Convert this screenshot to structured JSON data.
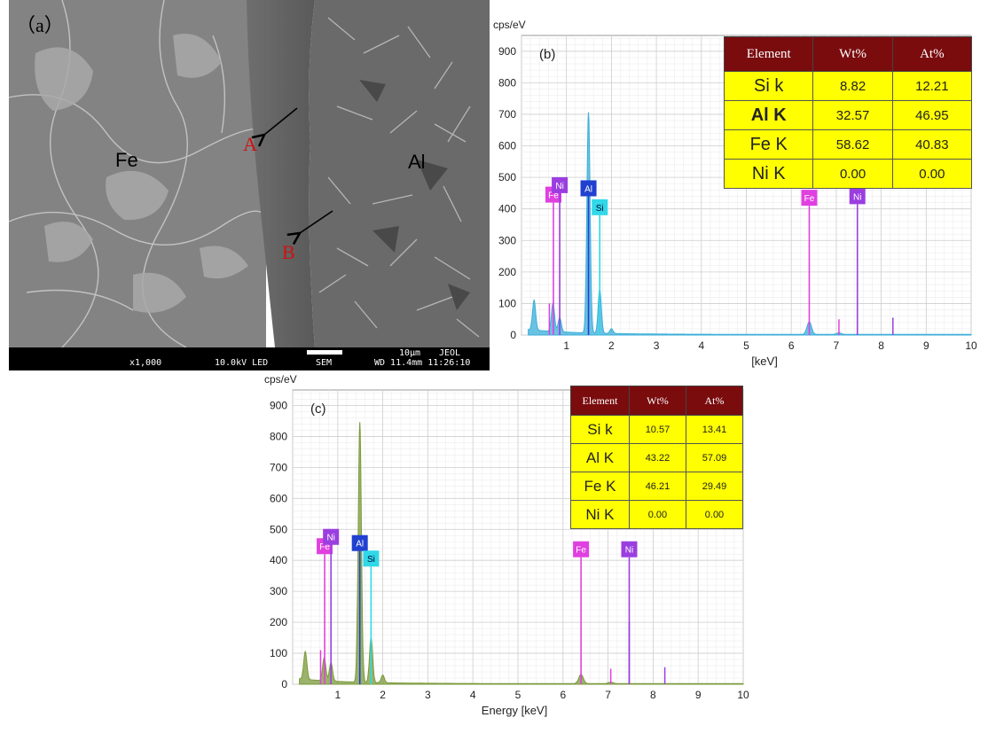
{
  "sem": {
    "panel_label": "（a）",
    "region_left": "Fe",
    "region_right": "Al",
    "marker_a": "A",
    "marker_b": "B",
    "info_bar": {
      "magnification": "x1,000",
      "voltage": "10.0kV LED",
      "mode": "SEM",
      "scale_text": "10μm",
      "brand": "JEOL",
      "working_distance_time": "WD 11.4mm 11:26:10"
    }
  },
  "spectrum_b": {
    "panel_label": "(b)",
    "yunit": "cps/eV",
    "xunit": "[keV]",
    "table": {
      "headers": [
        "Element",
        "Wt%",
        "At%"
      ],
      "rows": [
        {
          "element": "Si k",
          "wt": "8.82",
          "at": "12.21"
        },
        {
          "element": "Al K",
          "wt": "32.57",
          "at": "46.95"
        },
        {
          "element": "Fe K",
          "wt": "58.62",
          "at": "40.83"
        },
        {
          "element": "Ni K",
          "wt": "0.00",
          "at": "0.00"
        }
      ]
    }
  },
  "spectrum_c": {
    "panel_label": "(c)",
    "yunit": "cps/eV",
    "xlabel": "Energy [keV]",
    "table": {
      "headers": [
        "Element",
        "Wt%",
        "At%"
      ],
      "rows": [
        {
          "element": "Si k",
          "wt": "10.57",
          "at": "13.41"
        },
        {
          "element": "Al K",
          "wt": "43.22",
          "at": "57.09"
        },
        {
          "element": "Fe K",
          "wt": "46.21",
          "at": "29.49"
        },
        {
          "element": "Ni K",
          "wt": "0.00",
          "at": "0.00"
        }
      ]
    }
  },
  "colors": {
    "fe": "#e040e0",
    "ni": "#9a3ee0",
    "al": "#2040d0",
    "si": "#30d8e8",
    "spectrum_b_fill": "#3aaed8",
    "spectrum_c_fill": "#7a9a3a",
    "table_header": "#7a0c0e",
    "table_cell": "#ffff00"
  },
  "chart_data": [
    {
      "type": "line",
      "panel": "b",
      "ylabel": "cps/eV",
      "xlabel": "[keV]",
      "xlim": [
        0,
        10
      ],
      "ylim": [
        0,
        950
      ],
      "x_ticks": [
        1,
        2,
        3,
        4,
        5,
        6,
        7,
        8,
        9,
        10
      ],
      "y_ticks": [
        0,
        100,
        200,
        300,
        400,
        500,
        600,
        700,
        800,
        900
      ],
      "grid": true,
      "spectrum_peaks": [
        {
          "x": 0.28,
          "y": 95
        },
        {
          "x": 0.7,
          "y": 90
        },
        {
          "x": 0.85,
          "y": 45
        },
        {
          "x": 1.49,
          "y": 700
        },
        {
          "x": 1.74,
          "y": 140
        },
        {
          "x": 2.0,
          "y": 15
        },
        {
          "x": 6.4,
          "y": 40
        },
        {
          "x": 7.06,
          "y": 5
        }
      ],
      "element_lines": [
        {
          "label": "Fe",
          "x": 0.71,
          "y": 420,
          "color": "fe"
        },
        {
          "label": "Ni",
          "x": 0.85,
          "y": 450,
          "color": "ni"
        },
        {
          "label": "Al",
          "x": 1.49,
          "y": 440,
          "color": "al"
        },
        {
          "label": "Si",
          "x": 1.74,
          "y": 380,
          "color": "si"
        },
        {
          "label": "Fe",
          "x": 6.4,
          "y": 410,
          "color": "fe"
        },
        {
          "label": "Ni",
          "x": 7.47,
          "y": 415,
          "color": "ni"
        }
      ],
      "minor_lines": [
        {
          "x": 0.62,
          "y": 100,
          "color": "fe"
        },
        {
          "x": 7.06,
          "y": 50,
          "color": "fe"
        },
        {
          "x": 7.47,
          "y": 195,
          "color": "ni"
        },
        {
          "x": 8.26,
          "y": 55,
          "color": "ni"
        }
      ]
    },
    {
      "type": "line",
      "panel": "c",
      "ylabel": "cps/eV",
      "xlabel": "Energy [keV]",
      "xlim": [
        0,
        10
      ],
      "ylim": [
        0,
        950
      ],
      "x_ticks": [
        1,
        2,
        3,
        4,
        5,
        6,
        7,
        8,
        9,
        10
      ],
      "y_ticks": [
        0,
        100,
        200,
        300,
        400,
        500,
        600,
        700,
        800,
        900
      ],
      "grid": true,
      "spectrum_peaks": [
        {
          "x": 0.28,
          "y": 90
        },
        {
          "x": 0.7,
          "y": 75
        },
        {
          "x": 0.85,
          "y": 60
        },
        {
          "x": 1.49,
          "y": 840
        },
        {
          "x": 1.74,
          "y": 145
        },
        {
          "x": 2.0,
          "y": 25
        },
        {
          "x": 6.4,
          "y": 30
        },
        {
          "x": 7.06,
          "y": 5
        }
      ],
      "element_lines": [
        {
          "label": "Fe",
          "x": 0.71,
          "y": 420,
          "color": "fe"
        },
        {
          "label": "Ni",
          "x": 0.85,
          "y": 450,
          "color": "ni"
        },
        {
          "label": "Al",
          "x": 1.49,
          "y": 430,
          "color": "al"
        },
        {
          "label": "Si",
          "x": 1.74,
          "y": 380,
          "color": "si"
        },
        {
          "label": "Fe",
          "x": 6.4,
          "y": 410,
          "color": "fe"
        },
        {
          "label": "Ni",
          "x": 7.47,
          "y": 410,
          "color": "ni"
        }
      ],
      "minor_lines": [
        {
          "x": 0.62,
          "y": 110,
          "color": "fe"
        },
        {
          "x": 7.06,
          "y": 50,
          "color": "fe"
        },
        {
          "x": 7.47,
          "y": 200,
          "color": "ni"
        },
        {
          "x": 8.26,
          "y": 55,
          "color": "ni"
        }
      ]
    }
  ]
}
